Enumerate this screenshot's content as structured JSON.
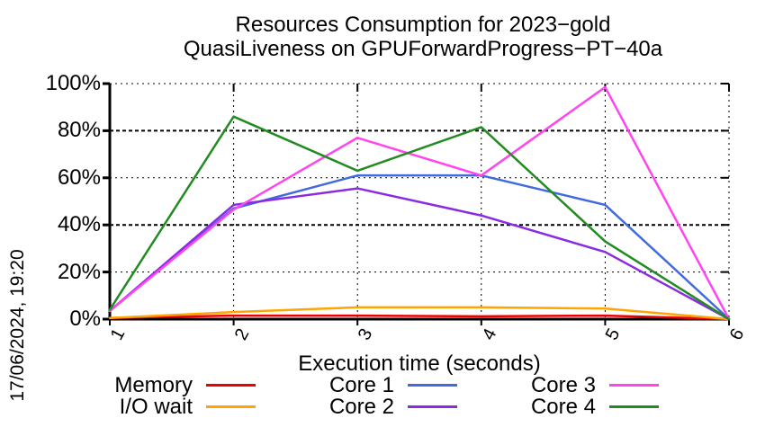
{
  "title": {
    "line1": "Resources Consumption for 2023−gold",
    "line2": "QuasiLiveness on GPUForwardProgress−PT−40a"
  },
  "timestamp": "17/06/2024, 19:20",
  "axes": {
    "x_label": "Execution time (seconds)",
    "y_tick_labels": [
      "0%",
      "20%",
      "40%",
      "60%",
      "80%",
      "100%"
    ],
    "x_tick_labels": [
      "1",
      "2",
      "3",
      "4",
      "5",
      "6"
    ]
  },
  "chart_data": {
    "type": "line",
    "x": [
      1,
      2,
      3,
      4,
      5,
      6
    ],
    "xlabel": "Execution time (seconds)",
    "ylabel": "",
    "xlim": [
      1,
      6
    ],
    "ylim": [
      0,
      100
    ],
    "grid": true,
    "legend_position": "bottom",
    "series": [
      {
        "name": "Memory",
        "color": "#ee0000",
        "values": [
          0.5,
          1.5,
          1.5,
          1.2,
          1.5,
          0
        ]
      },
      {
        "name": "I/O wait",
        "color": "#ffa500",
        "values": [
          0.5,
          3.0,
          5.0,
          5.0,
          4.5,
          0
        ]
      },
      {
        "name": "Core 1",
        "color": "#4169e1",
        "values": [
          3.5,
          47.0,
          61.0,
          61.0,
          48.5,
          0
        ]
      },
      {
        "name": "Core 2",
        "color": "#8a2be2",
        "values": [
          3.5,
          48.5,
          55.5,
          44.0,
          28.5,
          0
        ]
      },
      {
        "name": "Core 3",
        "color": "#ff44f0",
        "values": [
          3.5,
          46.5,
          77.0,
          61.0,
          98.5,
          0
        ]
      },
      {
        "name": "Core 4",
        "color": "#228b22",
        "values": [
          4.0,
          86.0,
          63.0,
          81.5,
          33.0,
          0
        ]
      }
    ]
  }
}
